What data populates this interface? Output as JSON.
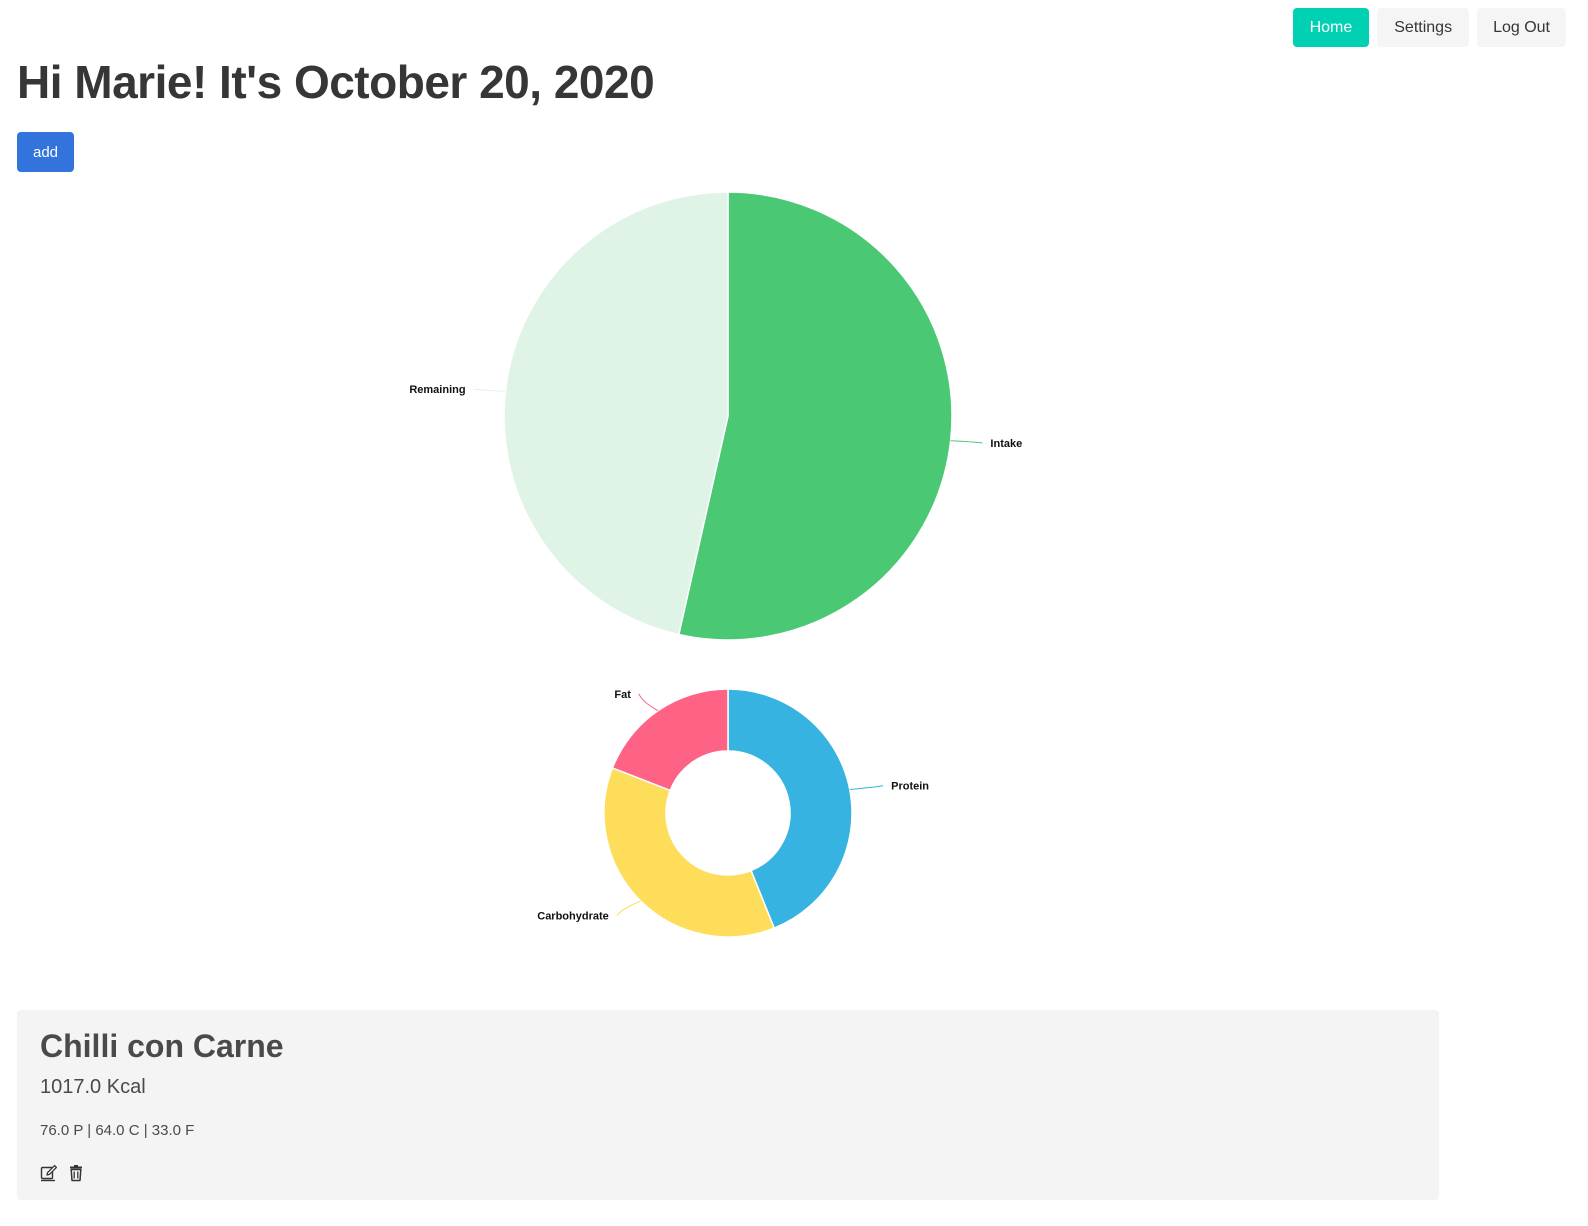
{
  "nav": {
    "home_label": "Home",
    "settings_label": "Settings",
    "logout_label": "Log Out"
  },
  "greeting": "Hi Marie! It's October 20, 2020",
  "add_label": "add",
  "colors": {
    "home_button": "#00d1b2",
    "add_button": "#3273dc",
    "intake": "#4bc874",
    "remaining": "#dff4e6",
    "protein": "#36b3e0",
    "carbohydrate": "#fedd5a",
    "fat": "#fe6284"
  },
  "chart_data": [
    {
      "type": "pie",
      "categories": [
        "Intake",
        "Remaining"
      ],
      "values": [
        1017,
        883
      ],
      "colors": [
        "#4bc874",
        "#dff4e6"
      ]
    },
    {
      "type": "pie",
      "donut": true,
      "categories": [
        "Protein",
        "Carbohydrate",
        "Fat"
      ],
      "values": [
        76.0,
        64.0,
        33.0
      ],
      "colors": [
        "#36b3e0",
        "#fedd5a",
        "#fe6284"
      ]
    }
  ],
  "food_card": {
    "name": "Chilli con Carne",
    "kcal": "1017.0 Kcal",
    "macros": "76.0 P | 64.0 C | 33.0 F",
    "edit_icon": "edit-icon",
    "delete_icon": "trash-icon"
  }
}
